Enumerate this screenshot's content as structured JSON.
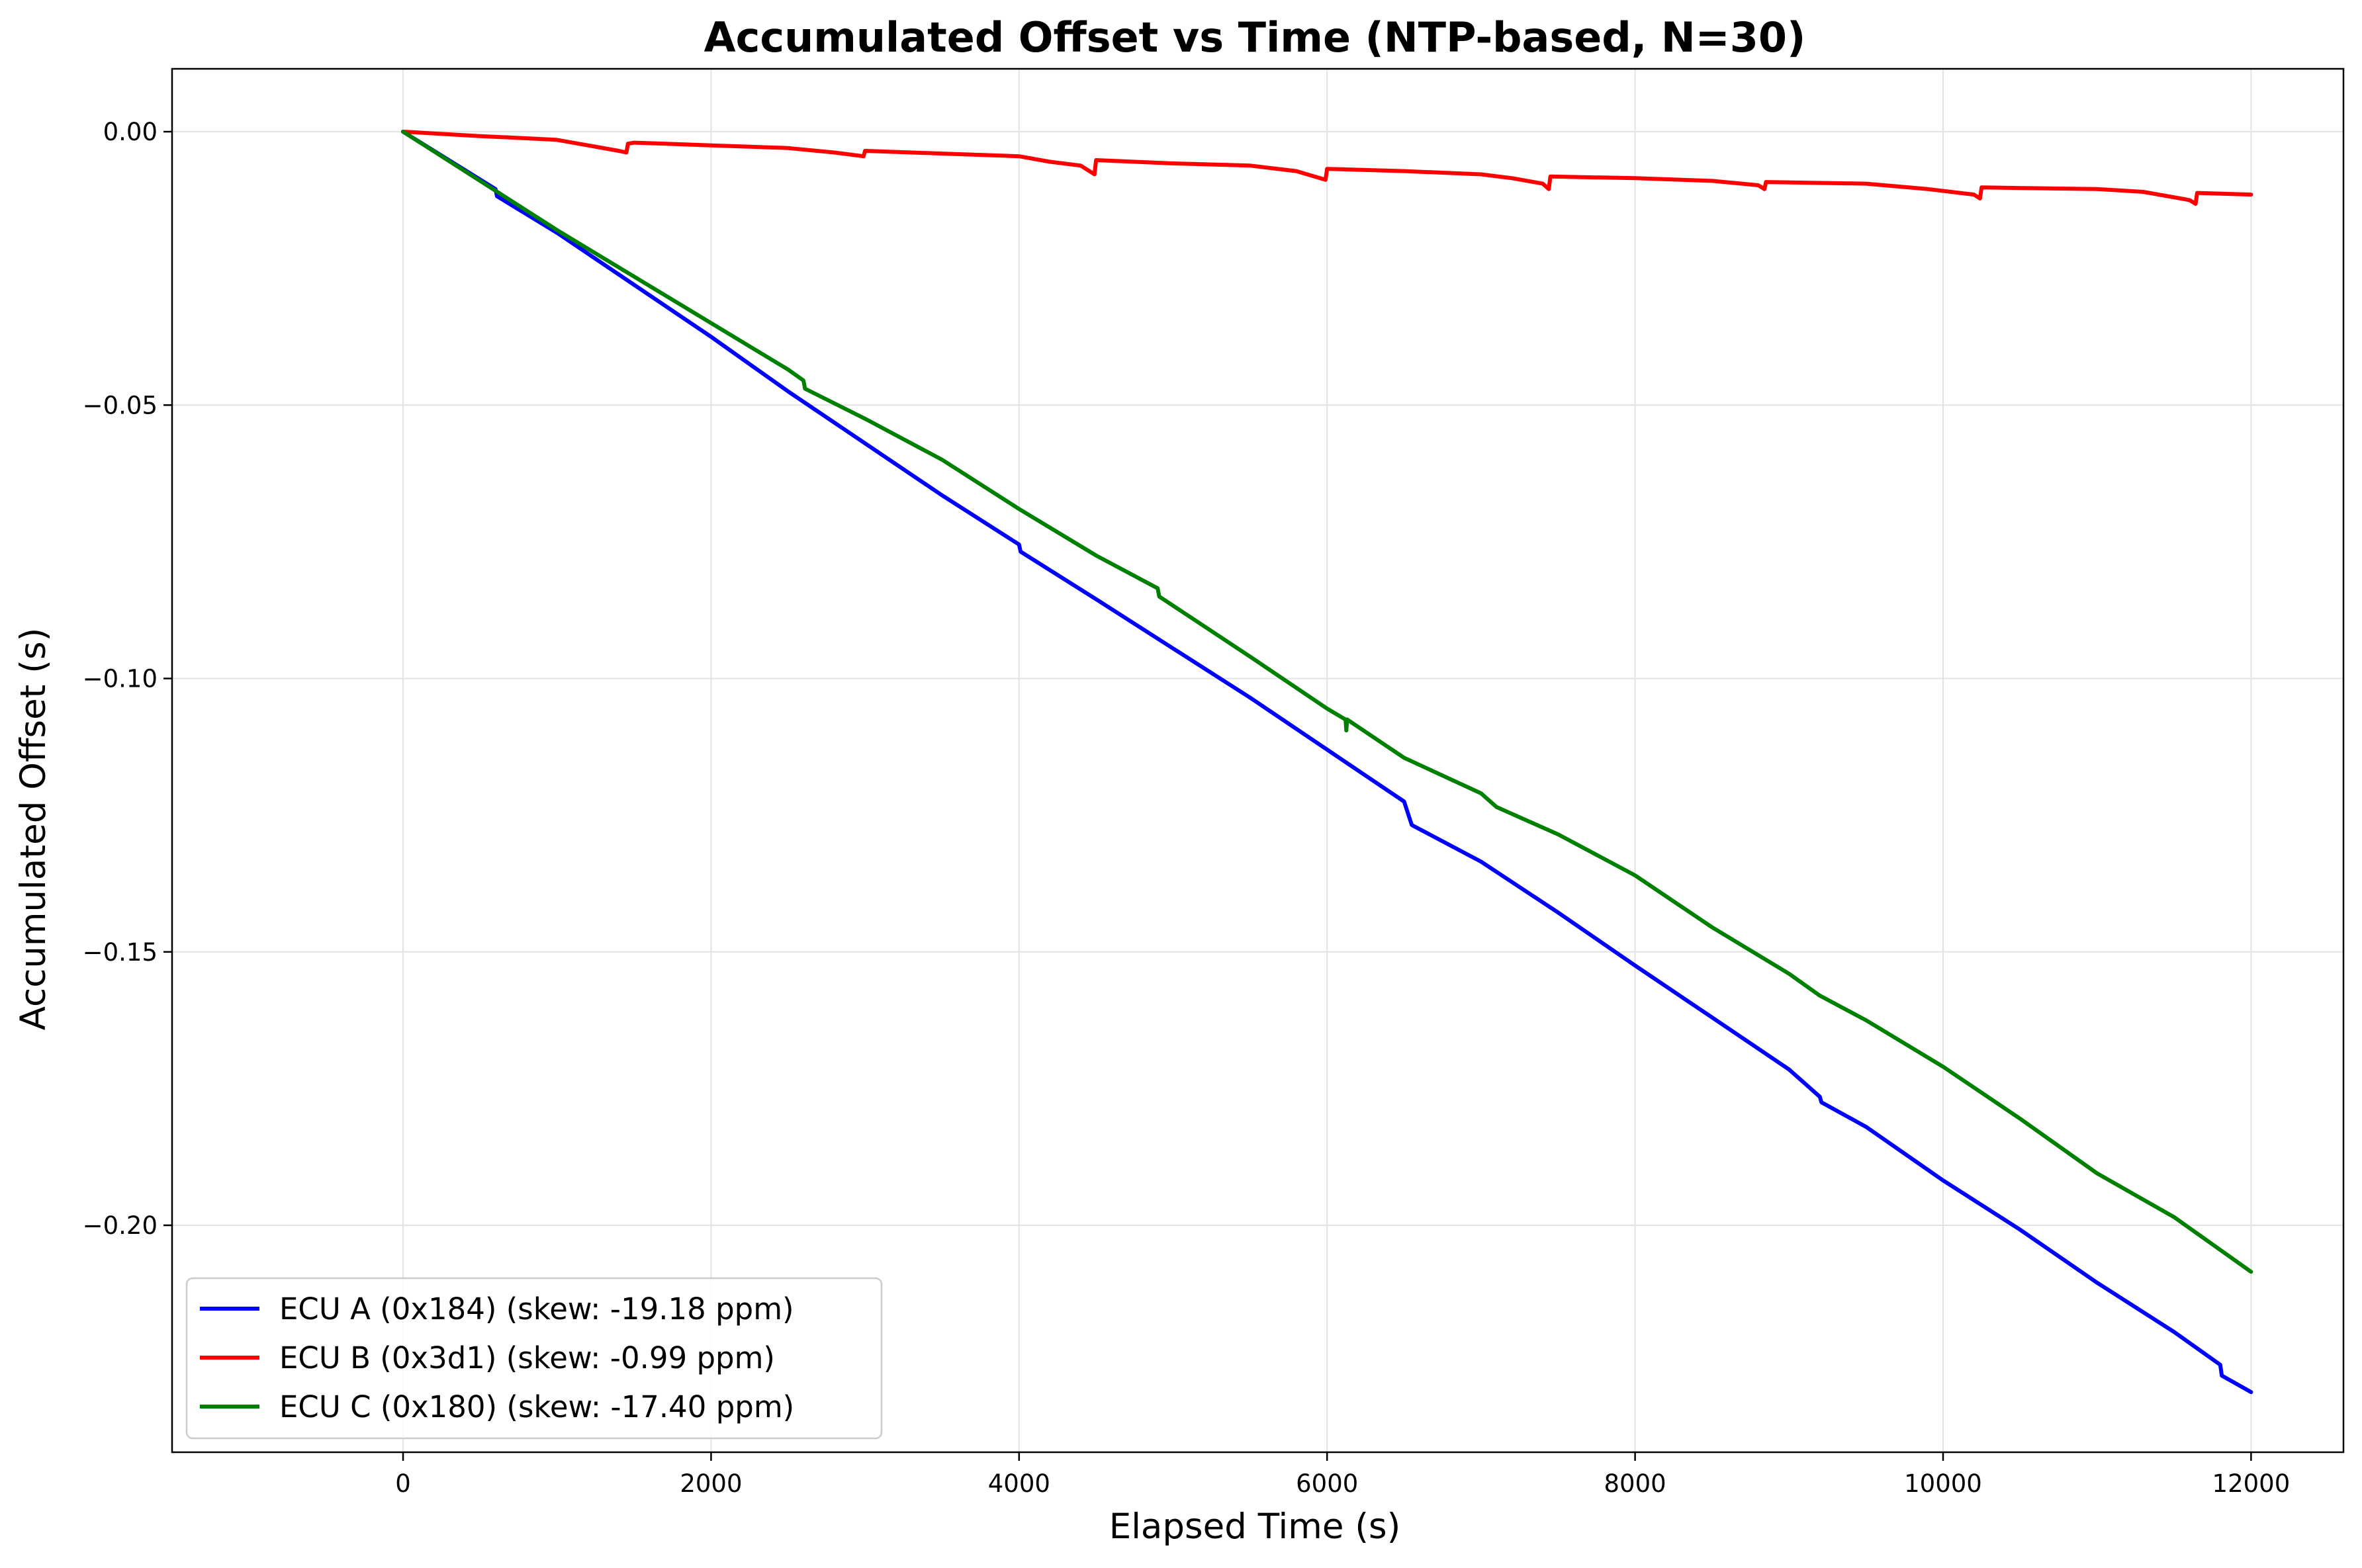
{
  "chart_data": {
    "type": "line",
    "title": "Accumulated Offset vs Time (NTP-based, N=30)",
    "xlabel": "Elapsed Time (s)",
    "ylabel": "Accumulated Offset (s)",
    "xlim": [
      -1500,
      12600
    ],
    "ylim": [
      -0.2415,
      0.0115
    ],
    "xticks": [
      0,
      2000,
      4000,
      6000,
      8000,
      10000,
      12000
    ],
    "xtick_labels": [
      "0",
      "2000",
      "4000",
      "6000",
      "8000",
      "10000",
      "12000"
    ],
    "yticks": [
      0.0,
      -0.05,
      -0.1,
      -0.15,
      -0.2
    ],
    "ytick_labels": [
      "0.00",
      "−0.05",
      "−0.10",
      "−0.15",
      "−0.20"
    ],
    "grid": true,
    "legend": "lower-left",
    "series": [
      {
        "name": "ECU A (0x184) (skew: -19.18 ppm)",
        "color": "#0000ff",
        "x": [
          0,
          600,
          610,
          1000,
          1500,
          2000,
          2500,
          3000,
          3500,
          4000,
          4010,
          4500,
          5000,
          5500,
          6000,
          6500,
          6550,
          7000,
          7500,
          8000,
          8500,
          9000,
          9200,
          9210,
          9500,
          10000,
          10500,
          11000,
          11500,
          11800,
          11810,
          12000
        ],
        "y": [
          0.0,
          -0.0105,
          -0.0118,
          -0.0185,
          -0.028,
          -0.0375,
          -0.0475,
          -0.057,
          -0.0665,
          -0.0755,
          -0.0768,
          -0.0855,
          -0.0945,
          -0.1035,
          -0.113,
          -0.1225,
          -0.1268,
          -0.1335,
          -0.1428,
          -0.1525,
          -0.162,
          -0.1715,
          -0.1765,
          -0.1775,
          -0.182,
          -0.1918,
          -0.2008,
          -0.2105,
          -0.2195,
          -0.2255,
          -0.2275,
          -0.2305
        ]
      },
      {
        "name": "ECU B (0x3d1) (skew: -0.99 ppm)",
        "color": "#ff0000",
        "x": [
          0,
          500,
          800,
          1000,
          1200,
          1400,
          1450,
          1460,
          1500,
          2000,
          2500,
          2800,
          2990,
          3000,
          3500,
          4000,
          4200,
          4400,
          4490,
          4500,
          5000,
          5500,
          5800,
          5990,
          6000,
          6500,
          7000,
          7200,
          7400,
          7440,
          7450,
          8000,
          8500,
          8800,
          8840,
          8850,
          9500,
          9900,
          10200,
          10240,
          10250,
          11000,
          11300,
          11600,
          11640,
          11650,
          12000
        ],
        "y": [
          0.0,
          -0.0008,
          -0.0012,
          -0.0015,
          -0.0025,
          -0.0035,
          -0.0038,
          -0.0022,
          -0.002,
          -0.0025,
          -0.003,
          -0.0038,
          -0.0045,
          -0.0035,
          -0.004,
          -0.0045,
          -0.0055,
          -0.0062,
          -0.0078,
          -0.0052,
          -0.0058,
          -0.0062,
          -0.0072,
          -0.0088,
          -0.0068,
          -0.0072,
          -0.0078,
          -0.0085,
          -0.0095,
          -0.0105,
          -0.0082,
          -0.0085,
          -0.009,
          -0.0098,
          -0.0105,
          -0.0092,
          -0.0095,
          -0.0105,
          -0.0115,
          -0.0122,
          -0.0102,
          -0.0105,
          -0.011,
          -0.0125,
          -0.0132,
          -0.0112,
          -0.0115
        ]
      },
      {
        "name": "ECU C (0x180) (skew: -17.40 ppm)",
        "color": "#008000",
        "x": [
          0,
          500,
          1000,
          1500,
          2000,
          2500,
          2600,
          2610,
          3000,
          3500,
          4000,
          4500,
          4900,
          4910,
          5500,
          6000,
          6120,
          6125,
          6130,
          6500,
          7000,
          7100,
          7500,
          8000,
          8500,
          9000,
          9200,
          9500,
          10000,
          10500,
          11000,
          11500,
          12000
        ],
        "y": [
          0.0,
          -0.009,
          -0.018,
          -0.0265,
          -0.035,
          -0.0435,
          -0.0455,
          -0.047,
          -0.0525,
          -0.06,
          -0.069,
          -0.0775,
          -0.0835,
          -0.085,
          -0.096,
          -0.1055,
          -0.1075,
          -0.1095,
          -0.1075,
          -0.1145,
          -0.121,
          -0.1235,
          -0.1285,
          -0.136,
          -0.1455,
          -0.154,
          -0.158,
          -0.1625,
          -0.171,
          -0.1805,
          -0.1905,
          -0.1985,
          -0.2085
        ]
      }
    ]
  }
}
